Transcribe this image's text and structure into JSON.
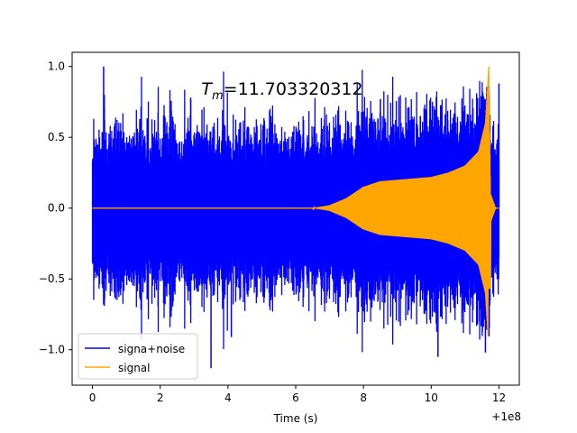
{
  "chart_data": {
    "type": "line",
    "title": "T_m=11.703320312",
    "title_base": "T",
    "title_sub": "m",
    "title_rest": "=11.703320312",
    "xlabel": "Time (s)",
    "ylabel": "",
    "x_offset_label": "+1e8",
    "xlim": [
      -0.6,
      12.6
    ],
    "ylim": [
      -1.25,
      1.1
    ],
    "x_ticks": [
      0,
      2,
      4,
      6,
      8,
      10,
      12
    ],
    "x_tick_labels": [
      "0",
      "2",
      "4",
      "6",
      "8",
      "10",
      "12"
    ],
    "y_ticks": [
      -1.0,
      -0.5,
      0.0,
      0.5,
      1.0
    ],
    "y_tick_labels": [
      "−1.0",
      "−0.5",
      "0.0",
      "0.5",
      "1.0"
    ],
    "legend_position": "lower-left",
    "series": [
      {
        "name": "signa+noise",
        "color": "#0000ff",
        "description_points": {
          "x_range": [
            0,
            12
          ],
          "typical_amplitude": 0.55,
          "peaks": [
            {
              "x": 0.35,
              "y": 0.8
            },
            {
              "x": 0.33,
              "y": -0.68
            },
            {
              "x": 0.35,
              "y": 0.72
            },
            {
              "x": 0.35,
              "y": -0.69
            },
            {
              "x": 0.33,
              "y": 1.0
            },
            {
              "x": 3.5,
              "y": -1.13
            },
            {
              "x": 2.9,
              "y": 0.78
            },
            {
              "x": 4.1,
              "y": -0.91
            },
            {
              "x": 8.5,
              "y": 0.77
            },
            {
              "x": 11.6,
              "y": -1.02
            },
            {
              "x": 10.2,
              "y": -1.05
            },
            {
              "x": 12.0,
              "y": 0.88
            }
          ]
        }
      },
      {
        "name": "signal",
        "color": "#ffa500",
        "envelope": [
          {
            "x": 0,
            "y": 0.0
          },
          {
            "x": 6.5,
            "y": 0.0
          },
          {
            "x": 7.0,
            "y": 0.02
          },
          {
            "x": 7.5,
            "y": 0.07
          },
          {
            "x": 8.0,
            "y": 0.15
          },
          {
            "x": 8.5,
            "y": 0.19
          },
          {
            "x": 9.0,
            "y": 0.2
          },
          {
            "x": 10.0,
            "y": 0.22
          },
          {
            "x": 10.5,
            "y": 0.25
          },
          {
            "x": 11.0,
            "y": 0.3
          },
          {
            "x": 11.4,
            "y": 0.4
          },
          {
            "x": 11.6,
            "y": 0.6
          },
          {
            "x": 11.7,
            "y": 1.0
          },
          {
            "x": 11.75,
            "y": 0.1
          },
          {
            "x": 11.9,
            "y": 0.0
          },
          {
            "x": 12.0,
            "y": 0.0
          }
        ]
      }
    ]
  }
}
